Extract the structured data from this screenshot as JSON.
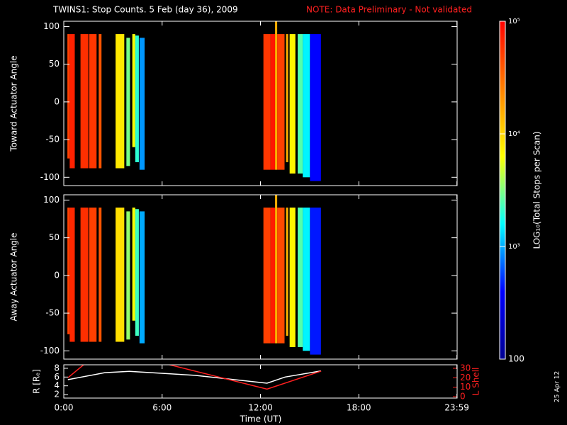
{
  "chart_data": [
    {
      "type": "heatmap",
      "title": "TWINS1: Stop Counts.  5 Feb (day  36), 2009",
      "subtitle": "NOTE: Data Preliminary - Not validated",
      "ylabel": "Toward Actuator Angle",
      "xlim": [
        0,
        24
      ],
      "xticks": [
        0,
        6,
        12,
        18,
        23.983
      ],
      "ylim": [
        -111,
        107
      ],
      "yticks": [
        100,
        50,
        0,
        -50,
        -100
      ],
      "colorbar": {
        "label": "LOG₁₀(Total Stops per Scan)",
        "log": true,
        "lim": [
          100,
          100000
        ],
        "ticks": [
          {
            "value": 100000,
            "label": "10⁵"
          },
          {
            "value": 10000,
            "label": "10⁴"
          },
          {
            "value": 1000,
            "label": "10³"
          },
          100
        ],
        "colors": [
          "#00008f",
          "#0000ff",
          "#00ffff",
          "#ffff00",
          "#ff8000",
          "#ff0000"
        ]
      },
      "stripes": [
        {
          "t": [
            0.22,
            0.36
          ],
          "y": [
            -75,
            90
          ],
          "v": 50000
        },
        {
          "t": [
            0.36,
            0.67
          ],
          "y": [
            -88,
            90
          ],
          "v": 70000
        },
        {
          "t": [
            1.02,
            1.5
          ],
          "y": [
            -88,
            90
          ],
          "v": 60000
        },
        {
          "t": [
            1.55,
            2.0
          ],
          "y": [
            -88,
            90
          ],
          "v": 55000
        },
        {
          "t": [
            2.13,
            2.3
          ],
          "y": [
            -88,
            90
          ],
          "v": 40000
        },
        {
          "t": [
            3.16,
            3.69
          ],
          "y": [
            -88,
            90
          ],
          "v": 8000
        },
        {
          "t": [
            3.82,
            4.04
          ],
          "y": [
            -85,
            85
          ],
          "v": 3000
        },
        {
          "t": [
            4.18,
            4.36
          ],
          "y": [
            -60,
            90
          ],
          "v": 6000
        },
        {
          "t": [
            4.36,
            4.58
          ],
          "y": [
            -80,
            88
          ],
          "v": 2000
        },
        {
          "t": [
            4.62,
            4.93
          ],
          "y": [
            -90,
            85
          ],
          "v": 900
        },
        {
          "t": [
            12.18,
            12.62
          ],
          "y": [
            -90,
            90
          ],
          "v": 55000
        },
        {
          "t": [
            12.62,
            12.89
          ],
          "y": [
            -90,
            90
          ],
          "v": 80000
        },
        {
          "t": [
            12.89,
            13.02
          ],
          "y": [
            -90,
            110
          ],
          "v": 15000
        },
        {
          "t": [
            13.02,
            13.47
          ],
          "y": [
            -90,
            90
          ],
          "v": 50000
        },
        {
          "t": [
            13.56,
            13.69
          ],
          "y": [
            -80,
            90
          ],
          "v": 15000
        },
        {
          "t": [
            13.78,
            14.13
          ],
          "y": [
            -95,
            90
          ],
          "v": 7000
        },
        {
          "t": [
            14.27,
            14.58
          ],
          "y": [
            -95,
            90
          ],
          "v": 2500
        },
        {
          "t": [
            14.58,
            15.02
          ],
          "y": [
            -100,
            90
          ],
          "v": 1500
        },
        {
          "t": [
            15.02,
            15.69
          ],
          "y": [
            -105,
            90
          ],
          "v": 400
        }
      ]
    },
    {
      "type": "heatmap",
      "ylabel": "Away Actuator Angle",
      "xlim": [
        0,
        24
      ],
      "xticks": [
        0,
        6,
        12,
        18,
        23.983
      ],
      "ylim": [
        -111,
        107
      ],
      "yticks": [
        100,
        50,
        0,
        -50,
        -100
      ],
      "stripes": [
        {
          "t": [
            0.22,
            0.36
          ],
          "y": [
            -78,
            90
          ],
          "v": 50000
        },
        {
          "t": [
            0.36,
            0.67
          ],
          "y": [
            -88,
            90
          ],
          "v": 65000
        },
        {
          "t": [
            1.02,
            1.5
          ],
          "y": [
            -88,
            90
          ],
          "v": 60000
        },
        {
          "t": [
            1.55,
            2.0
          ],
          "y": [
            -88,
            90
          ],
          "v": 50000
        },
        {
          "t": [
            2.13,
            2.3
          ],
          "y": [
            -88,
            90
          ],
          "v": 40000
        },
        {
          "t": [
            3.16,
            3.69
          ],
          "y": [
            -88,
            90
          ],
          "v": 9000
        },
        {
          "t": [
            3.82,
            4.04
          ],
          "y": [
            -85,
            85
          ],
          "v": 3500
        },
        {
          "t": [
            4.18,
            4.36
          ],
          "y": [
            -60,
            90
          ],
          "v": 6000
        },
        {
          "t": [
            4.36,
            4.58
          ],
          "y": [
            -80,
            88
          ],
          "v": 2200
        },
        {
          "t": [
            4.62,
            4.93
          ],
          "y": [
            -90,
            85
          ],
          "v": 1000
        },
        {
          "t": [
            12.18,
            12.62
          ],
          "y": [
            -90,
            90
          ],
          "v": 50000
        },
        {
          "t": [
            12.62,
            12.89
          ],
          "y": [
            -90,
            90
          ],
          "v": 75000
        },
        {
          "t": [
            12.89,
            13.02
          ],
          "y": [
            -90,
            110
          ],
          "v": 15000
        },
        {
          "t": [
            13.02,
            13.47
          ],
          "y": [
            -90,
            90
          ],
          "v": 45000
        },
        {
          "t": [
            13.56,
            13.69
          ],
          "y": [
            -80,
            90
          ],
          "v": 14000
        },
        {
          "t": [
            13.78,
            14.13
          ],
          "y": [
            -95,
            90
          ],
          "v": 7000
        },
        {
          "t": [
            14.27,
            14.58
          ],
          "y": [
            -95,
            90
          ],
          "v": 2500
        },
        {
          "t": [
            14.58,
            15.02
          ],
          "y": [
            -100,
            90
          ],
          "v": 1500
        },
        {
          "t": [
            15.02,
            15.69
          ],
          "y": [
            -105,
            90
          ],
          "v": 450
        }
      ]
    },
    {
      "type": "line",
      "xlabel": "Time (UT)",
      "ylabel": "R [Rₑ]",
      "y2label": "L Shell",
      "footer": "25 Apr 12",
      "xlim": [
        0,
        24
      ],
      "xticks": [
        {
          "value": 0,
          "label": "0:00"
        },
        {
          "value": 6,
          "label": "6:00"
        },
        {
          "value": 12,
          "label": "12:00"
        },
        {
          "value": 18,
          "label": "18:00"
        },
        {
          "value": 23.983,
          "label": "23:59"
        }
      ],
      "ylim": [
        1.2,
        8.8
      ],
      "yticks": [
        2,
        4,
        6,
        8
      ],
      "y2lim": [
        -1.5,
        33.7
      ],
      "y2ticks": [
        0,
        10,
        20,
        30
      ],
      "series": [
        {
          "color": "#ffffff",
          "x": [
            0.25,
            2.5,
            4,
            8,
            12.4,
            13.5,
            15.7
          ],
          "values": [
            5.4,
            7,
            7.3,
            6.4,
            4.6,
            6,
            7.4
          ]
        },
        {
          "color": "#ff2020",
          "axis": "y2",
          "x": [
            0.25,
            1.3,
            4,
            6.4,
            12.4,
            15.7
          ],
          "values": [
            20,
            35,
            null,
            34,
            8,
            27
          ]
        }
      ]
    }
  ]
}
